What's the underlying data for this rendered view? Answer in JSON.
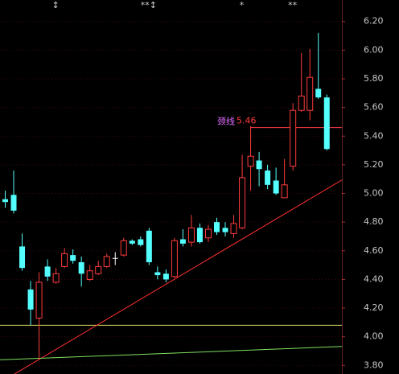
{
  "chart_data": {
    "type": "candlestick",
    "ylim": [
      3.74,
      6.35
    ],
    "yticks": [
      {
        "value": 3.8,
        "label": "3.80"
      },
      {
        "value": 4.0,
        "label": "4.00"
      },
      {
        "value": 4.2,
        "label": "4.20"
      },
      {
        "value": 4.4,
        "label": "4.40"
      },
      {
        "value": 4.6,
        "label": "4.60"
      },
      {
        "value": 4.8,
        "label": "4.80"
      },
      {
        "value": 5.0,
        "label": "5.00"
      },
      {
        "value": 5.2,
        "label": "5.20"
      },
      {
        "value": 5.4,
        "label": "5.40"
      },
      {
        "value": 5.6,
        "label": "5.60"
      },
      {
        "value": 5.8,
        "label": "5.80"
      },
      {
        "value": 6.0,
        "label": "6.00"
      },
      {
        "value": 6.2,
        "label": "6.20"
      }
    ],
    "grid": true,
    "up_color": "#ff3c3c",
    "down_color": "#54ffff",
    "flat_color": "#ffffff",
    "open": [
      4.96,
      4.99,
      4.63,
      4.33,
      4.13,
      4.49,
      4.38,
      4.49,
      4.57,
      4.52,
      4.4,
      4.44,
      4.49,
      4.55,
      4.57,
      4.67,
      4.68,
      4.74,
      4.45,
      4.44,
      4.42,
      4.68,
      4.66,
      4.76,
      4.69,
      4.8,
      4.76,
      4.72,
      4.76,
      5.19,
      5.23,
      5.16,
      5.09,
      4.97,
      5.19,
      5.58,
      5.58,
      5.73,
      5.67
    ],
    "close": [
      4.94,
      4.88,
      4.48,
      4.19,
      4.38,
      4.42,
      4.44,
      4.58,
      4.53,
      4.44,
      4.46,
      4.49,
      4.56,
      4.55,
      4.67,
      4.65,
      4.64,
      4.52,
      4.43,
      4.4,
      4.67,
      4.65,
      4.76,
      4.66,
      4.75,
      4.73,
      4.73,
      4.79,
      5.11,
      5.26,
      5.17,
      5.06,
      5.0,
      5.06,
      5.58,
      5.68,
      5.81,
      5.67,
      5.31
    ],
    "high": [
      5.02,
      5.16,
      4.72,
      4.39,
      4.45,
      4.54,
      4.48,
      4.62,
      4.61,
      4.56,
      4.5,
      4.53,
      4.58,
      4.59,
      4.69,
      4.68,
      4.7,
      4.76,
      4.49,
      4.47,
      4.69,
      4.75,
      4.85,
      4.79,
      4.78,
      4.83,
      4.8,
      4.85,
      5.27,
      5.47,
      5.29,
      5.2,
      5.18,
      5.24,
      5.63,
      5.98,
      6.01,
      6.12,
      5.69
    ],
    "low": [
      4.9,
      4.86,
      4.46,
      4.08,
      3.84,
      4.39,
      4.37,
      4.48,
      4.51,
      4.35,
      4.39,
      4.43,
      4.48,
      4.5,
      4.56,
      4.64,
      4.63,
      4.5,
      4.4,
      4.38,
      4.41,
      4.63,
      4.63,
      4.65,
      4.66,
      4.71,
      4.7,
      4.69,
      4.75,
      5.02,
      5.05,
      5.03,
      4.99,
      4.97,
      5.16,
      5.57,
      5.51,
      5.66,
      5.3
    ],
    "neckline": {
      "label": "颈线",
      "value": 5.46,
      "color": "#ff3c3c",
      "label_color": "#e070ff",
      "from_index": 29
    },
    "hlines": [
      {
        "value": 4.08,
        "color": "#e0e060"
      }
    ],
    "trendlines": [
      {
        "color": "#ff3030",
        "points": [
          [
            4,
            3.84
          ],
          [
            20,
            4.4
          ]
        ]
      },
      {
        "color": "#80e060",
        "points": [
          [
            0,
            3.84
          ],
          [
            39,
            3.93
          ]
        ]
      }
    ],
    "markers": [
      {
        "index": 6,
        "label": "↕"
      },
      {
        "index": 17,
        "label": "**↕"
      },
      {
        "index": 28,
        "label": "*"
      },
      {
        "index": 34,
        "label": "**"
      }
    ]
  }
}
